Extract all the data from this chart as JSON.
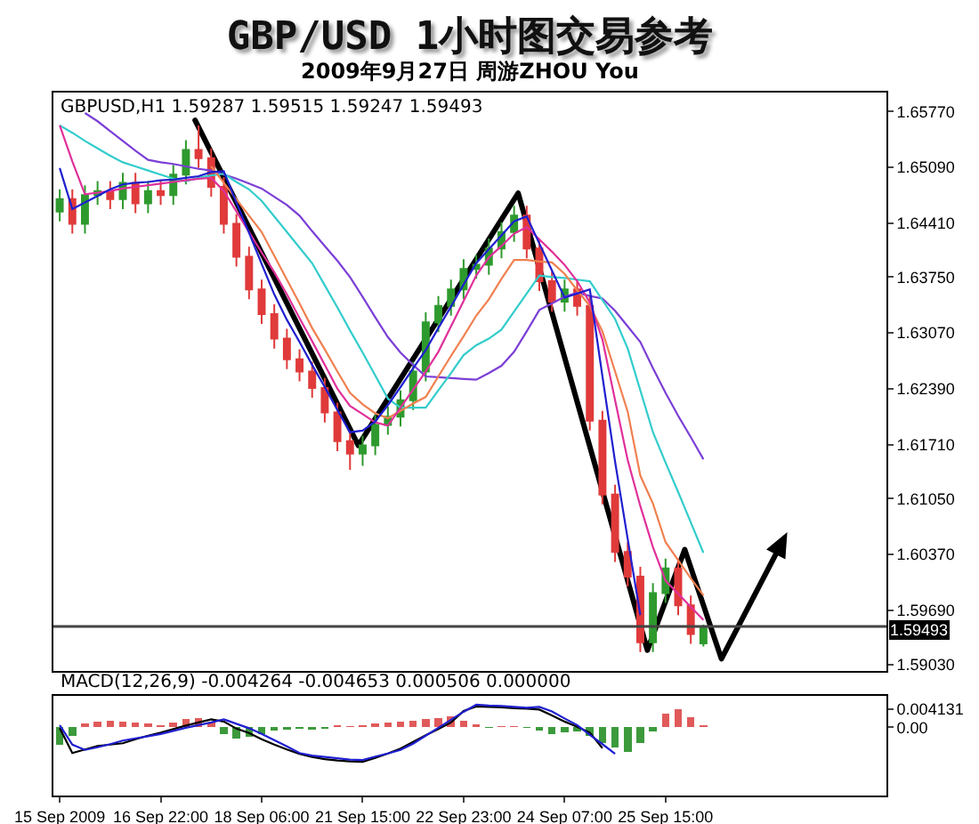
{
  "chart_data": [
    {
      "type": "candlestick",
      "title": "GBP/USD 1小时图交易参考",
      "subtitle": "2009年9月27日 周游ZHOU You",
      "annotations": [
        "GBPUSD,H1 1.59287 1.59515 1.59247 1.59493"
      ],
      "categories": [
        null,
        null,
        null,
        null,
        null,
        null,
        null,
        null,
        null,
        null,
        null,
        null,
        null,
        null,
        null,
        null,
        null,
        null,
        null,
        null,
        null,
        null,
        null,
        null,
        null,
        null,
        null,
        null,
        null,
        null,
        null,
        null,
        null,
        null,
        null,
        null,
        null,
        null,
        null,
        null,
        null,
        null,
        null,
        null,
        null,
        null,
        null,
        null,
        null,
        null,
        null,
        null,
        null,
        null,
        null,
        null,
        null,
        null,
        null,
        null,
        null,
        null,
        null,
        null,
        null,
        null
      ],
      "ohlc": [
        [
          1.6455,
          1.6482,
          1.6443,
          1.647
        ],
        [
          1.647,
          1.6482,
          1.6428,
          1.644
        ],
        [
          1.644,
          1.6487,
          1.6428,
          1.6475
        ],
        [
          1.6475,
          1.6492,
          1.6463,
          1.648
        ],
        [
          1.648,
          1.6492,
          1.6458,
          1.647
        ],
        [
          1.647,
          1.6502,
          1.6458,
          1.649
        ],
        [
          1.649,
          1.6502,
          1.6453,
          1.6465
        ],
        [
          1.6465,
          1.6492,
          1.6453,
          1.648
        ],
        [
          1.648,
          1.6492,
          1.6463,
          1.6475
        ],
        [
          1.6475,
          1.6512,
          1.6463,
          1.65
        ],
        [
          1.65,
          1.6542,
          1.6488,
          1.653
        ],
        [
          1.653,
          1.656,
          1.6508,
          1.652
        ],
        [
          1.652,
          1.6532,
          1.6473,
          1.6485
        ],
        [
          1.6485,
          1.6497,
          1.6428,
          1.644
        ],
        [
          1.644,
          1.6452,
          1.6388,
          1.64
        ],
        [
          1.64,
          1.6412,
          1.6348,
          1.636
        ],
        [
          1.636,
          1.6372,
          1.6318,
          1.633
        ],
        [
          1.633,
          1.6342,
          1.6288,
          1.63
        ],
        [
          1.63,
          1.6312,
          1.6263,
          1.6275
        ],
        [
          1.6275,
          1.6287,
          1.6248,
          1.626
        ],
        [
          1.626,
          1.6272,
          1.6228,
          1.624
        ],
        [
          1.624,
          1.6252,
          1.6198,
          1.621
        ],
        [
          1.621,
          1.6222,
          1.6163,
          1.6175
        ],
        [
          1.6175,
          1.6187,
          1.614,
          1.616
        ],
        [
          1.616,
          1.6182,
          1.6145,
          1.617
        ],
        [
          1.617,
          1.6207,
          1.6158,
          1.6195
        ],
        [
          1.6195,
          1.6217,
          1.6183,
          1.6205
        ],
        [
          1.6205,
          1.6237,
          1.6193,
          1.6225
        ],
        [
          1.6225,
          1.6272,
          1.6213,
          1.626
        ],
        [
          1.626,
          1.6332,
          1.6248,
          1.632
        ],
        [
          1.632,
          1.6352,
          1.6308,
          1.634
        ],
        [
          1.634,
          1.6372,
          1.6328,
          1.636
        ],
        [
          1.636,
          1.6397,
          1.6348,
          1.6385
        ],
        [
          1.6385,
          1.6402,
          1.6373,
          1.639
        ],
        [
          1.639,
          1.6422,
          1.6378,
          1.641
        ],
        [
          1.641,
          1.6442,
          1.6398,
          1.643
        ],
        [
          1.643,
          1.6462,
          1.6418,
          1.645
        ],
        [
          1.645,
          1.6462,
          1.6398,
          1.641
        ],
        [
          1.641,
          1.6422,
          1.6358,
          1.637
        ],
        [
          1.637,
          1.6382,
          1.6333,
          1.6345
        ],
        [
          1.6345,
          1.6372,
          1.6333,
          1.636
        ],
        [
          1.636,
          1.6372,
          1.6328,
          1.634
        ],
        [
          1.634,
          1.6352,
          1.6188,
          1.62
        ],
        [
          1.62,
          1.6212,
          1.6098,
          1.611
        ],
        [
          1.611,
          1.6122,
          1.6028,
          1.604
        ],
        [
          1.604,
          1.6052,
          1.5998,
          1.601
        ],
        [
          1.601,
          1.6022,
          1.5918,
          1.593
        ],
        [
          1.593,
          1.6002,
          1.5918,
          1.599
        ],
        [
          1.599,
          1.6032,
          1.5978,
          1.602
        ],
        [
          1.602,
          1.6032,
          1.5963,
          1.5975
        ],
        [
          1.5975,
          1.5987,
          1.5928,
          1.594
        ],
        [
          1.59287,
          1.59515,
          1.59247,
          1.59493
        ],
        null,
        null,
        null,
        null,
        null,
        null,
        null,
        null,
        null,
        null,
        null,
        null,
        null,
        null
      ],
      "series": [
        {
          "type": "line",
          "color": "#7b3fd6",
          "values": [
            null,
            null,
            1.6575,
            1.6565,
            1.6553,
            1.6541,
            1.6529,
            1.6518,
            1.6515,
            1.6513,
            1.651,
            1.6507,
            1.6505,
            1.65,
            1.6495,
            1.6489,
            1.6483,
            1.6473,
            1.6463,
            1.645,
            1.6431,
            1.6413,
            1.6395,
            1.6375,
            1.6351,
            1.6326,
            1.6302,
            1.6283,
            1.6268,
            1.6254,
            1.6253,
            1.6252,
            1.6251,
            1.625,
            1.6258,
            1.6267,
            1.6284,
            1.6309,
            1.6335,
            1.6343,
            1.6351,
            1.6356,
            1.6352,
            1.6349,
            1.6334,
            1.6315,
            1.6296,
            1.6264,
            1.6234,
            1.6206,
            1.618,
            1.6153,
            null,
            null,
            null,
            null,
            null,
            null,
            null,
            null,
            null,
            null,
            null,
            null,
            null,
            null
          ]
        },
        {
          "type": "line",
          "color": "#33cccc",
          "values": [
            1.656,
            1.6551,
            1.6541,
            1.6532,
            1.6523,
            1.6515,
            1.651,
            1.6505,
            1.65,
            1.6495,
            1.6492,
            1.6496,
            1.6499,
            1.6501,
            1.6491,
            1.6482,
            1.6468,
            1.6449,
            1.643,
            1.6411,
            1.6392,
            1.6365,
            1.6338,
            1.631,
            1.6283,
            1.6255,
            1.6227,
            1.6216,
            1.6216,
            1.6216,
            1.6237,
            1.6258,
            1.628,
            1.6292,
            1.63,
            1.6311,
            1.6333,
            1.6355,
            1.6377,
            1.6375,
            1.6374,
            1.6372,
            1.637,
            1.6347,
            1.6324,
            1.6288,
            1.6237,
            1.6186,
            1.6149,
            1.6113,
            1.6076,
            1.6039,
            null,
            null,
            null,
            null,
            null,
            null,
            null,
            null,
            null,
            null,
            null,
            null,
            null,
            null
          ]
        },
        {
          "type": "line",
          "color": "#f08050",
          "values": [
            null,
            null,
            null,
            null,
            null,
            null,
            null,
            null,
            null,
            null,
            null,
            null,
            1.651,
            1.649,
            1.647,
            1.645,
            1.643,
            1.6401,
            1.6372,
            1.6343,
            1.6313,
            1.6287,
            1.626,
            1.6234,
            1.622,
            1.6209,
            1.6203,
            1.6212,
            1.6221,
            1.6229,
            1.6254,
            1.6279,
            1.6303,
            1.6328,
            1.6348,
            1.6373,
            1.6396,
            1.6396,
            1.6394,
            1.6393,
            1.6379,
            1.6359,
            1.634,
            1.6309,
            1.626,
            1.6211,
            1.6133,
            1.6099,
            1.6052,
            1.603,
            1.6008,
            1.5987,
            null,
            null,
            null,
            null,
            null,
            null,
            null,
            null,
            null,
            null,
            null,
            null,
            null,
            null
          ]
        },
        {
          "type": "line",
          "color": "#e0309a",
          "values": [
            1.656,
            1.6516,
            1.6476,
            1.6478,
            1.648,
            1.6483,
            1.6485,
            1.6487,
            1.6489,
            1.6491,
            1.6493,
            1.6495,
            1.6496,
            1.648,
            1.6455,
            1.643,
            1.6405,
            1.6381,
            1.6354,
            1.6325,
            1.6297,
            1.6268,
            1.6239,
            1.6218,
            1.6208,
            1.6198,
            1.6194,
            1.6216,
            1.6238,
            1.626,
            1.6284,
            1.6315,
            1.6346,
            1.6377,
            1.6399,
            1.6413,
            1.6428,
            1.6436,
            1.6421,
            1.6406,
            1.639,
            1.637,
            1.6344,
            1.6299,
            1.6225,
            1.6152,
            1.6096,
            1.6046,
            1.6005,
            1.5989,
            1.5973,
            1.5957,
            null,
            null,
            null,
            null,
            null,
            null,
            null,
            null,
            null,
            null,
            null,
            null,
            null,
            null
          ]
        },
        {
          "type": "line",
          "color": "#1f1fd0",
          "values": [
            1.6508,
            1.6458,
            1.6466,
            1.6474,
            1.6482,
            1.6488,
            1.649,
            1.6491,
            1.6493,
            1.6494,
            1.6496,
            1.6498,
            1.6503,
            1.6504,
            1.6466,
            1.6429,
            1.6391,
            1.6354,
            1.6323,
            1.6296,
            1.6268,
            1.6241,
            1.6213,
            1.6186,
            1.6188,
            1.6199,
            1.6219,
            1.6241,
            1.6264,
            1.6286,
            1.6313,
            1.6339,
            1.6366,
            1.6392,
            1.6409,
            1.6426,
            1.6443,
            1.6449,
            1.6416,
            1.6383,
            1.635,
            1.6355,
            1.636,
            1.6254,
            1.615,
            1.6056,
            1.5963,
            null,
            null,
            null,
            null,
            null,
            null,
            null,
            null,
            null,
            null,
            null,
            null,
            null,
            null,
            null,
            null,
            null,
            null,
            null
          ]
        }
      ],
      "ylim": [
        1.5895,
        1.66
      ],
      "yticks": [
        {
          "value": 1.5903,
          "label": "1.59030"
        },
        {
          "value": 1.5969,
          "label": "1.59690"
        },
        {
          "value": 1.6037,
          "label": "1.60370"
        },
        {
          "value": 1.6105,
          "label": "1.61050"
        },
        {
          "value": 1.6171,
          "label": "1.61710"
        },
        {
          "value": 1.6239,
          "label": "1.62390"
        },
        {
          "value": 1.6307,
          "label": "1.63070"
        },
        {
          "value": 1.6375,
          "label": "1.63750"
        },
        {
          "value": 1.6441,
          "label": "1.64410"
        },
        {
          "value": 1.6509,
          "label": "1.65090"
        },
        {
          "value": 1.6577,
          "label": "1.65770"
        }
      ],
      "ref_lines": [
        {
          "axis": "y",
          "value": 1.59493,
          "label": "1.59493",
          "color": "#444444"
        }
      ]
    },
    {
      "type": "bar",
      "annotations": [
        "MACD(12,26,9) -0.004264 -0.004653 0.000506 0.000000"
      ],
      "categories": [
        "15 Sep 2009",
        null,
        null,
        null,
        null,
        null,
        null,
        null,
        "16 Sep 22:00",
        null,
        null,
        null,
        null,
        null,
        null,
        null,
        "18 Sep 06:00",
        null,
        null,
        null,
        null,
        null,
        null,
        null,
        "21 Sep 15:00",
        null,
        null,
        null,
        null,
        null,
        null,
        null,
        "22 Sep 23:00",
        null,
        null,
        null,
        null,
        null,
        null,
        null,
        "24 Sep 07:00",
        null,
        null,
        null,
        null,
        null,
        null,
        null,
        "25 Sep 15:00",
        null,
        null,
        null,
        null,
        null,
        null,
        null,
        null,
        null,
        null,
        null,
        null,
        null,
        null,
        null,
        null,
        null
      ],
      "series": [
        {
          "type": "bar",
          "values": [
            -0.004,
            -0.002,
            0.0008,
            0.0012,
            0.0014,
            0.0012,
            0.001,
            0.0008,
            0.0005,
            0.001,
            0.0018,
            0.002,
            0.001,
            -0.0015,
            -0.0025,
            -0.0022,
            -0.0015,
            -0.0008,
            -0.0005,
            -0.0004,
            -0.0006,
            -0.0003,
            0.0004,
            0.0002,
            0.0005,
            0.0008,
            0.001,
            0.0012,
            0.0015,
            0.0018,
            0.0021,
            0.0024,
            0.0015,
            0.0006,
            -0.0002,
            0.0002,
            0.0003,
            -0.0002,
            -0.0008,
            -0.0015,
            -0.0012,
            -0.001,
            -0.002,
            -0.0035,
            -0.0045,
            -0.0055,
            -0.0035,
            -0.001,
            0.003,
            0.004,
            0.0022,
            0.0005,
            null,
            null,
            null,
            null,
            null,
            null,
            null,
            null,
            null,
            null,
            null,
            null,
            null,
            null
          ],
          "colors": [
            "#3c9a3c",
            "#3c9a3c",
            "#e05a5a",
            "#e05a5a",
            "#e05a5a",
            "#e05a5a",
            "#e05a5a",
            "#e05a5a",
            "#e05a5a",
            "#e05a5a",
            "#e05a5a",
            "#e05a5a",
            "#e05a5a",
            "#3c9a3c",
            "#3c9a3c",
            "#3c9a3c",
            "#3c9a3c",
            "#3c9a3c",
            "#3c9a3c",
            "#3c9a3c",
            "#3c9a3c",
            "#3c9a3c",
            "#e05a5a",
            "#e05a5a",
            "#e05a5a",
            "#e05a5a",
            "#e05a5a",
            "#e05a5a",
            "#e05a5a",
            "#e05a5a",
            "#e05a5a",
            "#e05a5a",
            "#e05a5a",
            "#e05a5a",
            "#3c9a3c",
            "#e05a5a",
            "#e05a5a",
            "#3c9a3c",
            "#3c9a3c",
            "#3c9a3c",
            "#3c9a3c",
            "#3c9a3c",
            "#3c9a3c",
            "#3c9a3c",
            "#3c9a3c",
            "#3c9a3c",
            "#3c9a3c",
            "#3c9a3c",
            "#e05a5a",
            "#e05a5a",
            "#e05a5a",
            "#e05a5a",
            null,
            null,
            null,
            null,
            null,
            null,
            null,
            null,
            null,
            null,
            null,
            null,
            null,
            null
          ]
        },
        {
          "type": "line",
          "color": "#000000",
          "values": [
            -0.0002,
            -0.0058,
            -0.005,
            -0.0042,
            -0.0039,
            -0.0036,
            -0.0027,
            -0.0019,
            -0.0012,
            -0.0004,
            0.0004,
            0.0011,
            0.0018,
            0.0013,
            -0.0003,
            -0.0013,
            -0.0027,
            -0.0039,
            -0.005,
            -0.006,
            -0.0067,
            -0.0072,
            -0.0075,
            -0.0077,
            -0.0078,
            -0.0069,
            -0.0059,
            -0.0048,
            -0.0033,
            -0.0018,
            -0.0004,
            0.0011,
            0.0037,
            0.0047,
            0.0046,
            0.0045,
            0.0043,
            0.0042,
            0.004,
            0.0027,
            0.0013,
            0.0001,
            -0.0012,
            -0.0047,
            null,
            null,
            null,
            null,
            null,
            null,
            null,
            null,
            null,
            null,
            null,
            null,
            null,
            null,
            null,
            null,
            null,
            null,
            null,
            null,
            null,
            null
          ]
        },
        {
          "type": "line",
          "color": "#1f1fd0",
          "values": [
            0.0005,
            -0.0039,
            -0.0051,
            -0.0045,
            -0.0038,
            -0.003,
            -0.0025,
            -0.002,
            -0.0015,
            -0.0008,
            -0.0001,
            0.0005,
            0.0011,
            0.0018,
            0.0008,
            -0.0002,
            -0.0015,
            -0.0029,
            -0.0043,
            -0.0058,
            -0.0064,
            -0.0067,
            -0.007,
            -0.0073,
            -0.0074,
            -0.0066,
            -0.0059,
            -0.0051,
            -0.0037,
            -0.0019,
            -0.0001,
            0.0017,
            0.0035,
            0.0051,
            0.0049,
            0.0048,
            0.0046,
            0.0044,
            0.0046,
            0.0036,
            0.002,
            0.0005,
            -0.0017,
            -0.0038,
            -0.006,
            null,
            null,
            null,
            null,
            null,
            null,
            null,
            null,
            null,
            null,
            null,
            null,
            null,
            null,
            null,
            null,
            null,
            null,
            null,
            null,
            null
          ]
        }
      ],
      "ylim": [
        -0.0154,
        0.0071
      ],
      "yticks": [
        {
          "value": 0.004131,
          "label": "0.004131"
        },
        {
          "value": 0,
          "label": "0.00"
        }
      ]
    }
  ]
}
